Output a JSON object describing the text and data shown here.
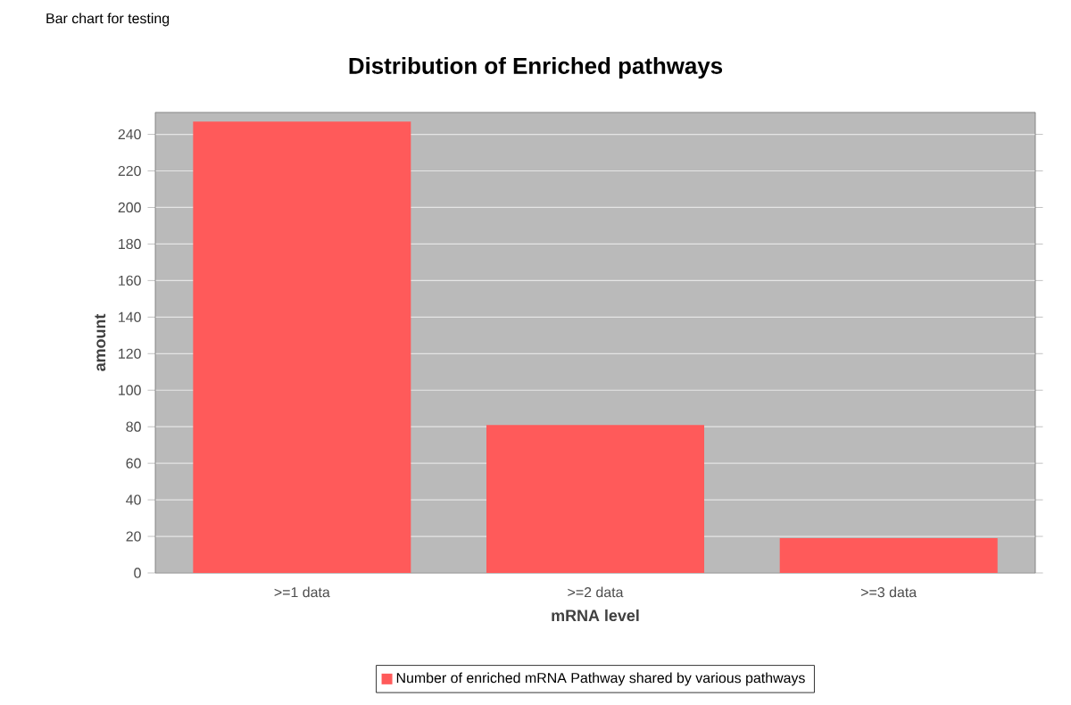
{
  "chart_data": {
    "type": "bar",
    "title": "Distribution of Enriched pathways",
    "xlabel": "mRNA level",
    "ylabel": "amount",
    "annotations": [
      "Bar chart for testing"
    ],
    "categories": [
      ">=1 data",
      ">=2 data",
      ">=3 data"
    ],
    "series": [
      {
        "name": "Number of enriched mRNA Pathway shared by various pathways",
        "color": "#ff5a5a",
        "values": [
          247,
          81,
          19
        ]
      }
    ],
    "ylim": [
      0,
      252
    ],
    "yticks": [
      0,
      20,
      40,
      60,
      80,
      100,
      120,
      140,
      160,
      180,
      200,
      220,
      240
    ],
    "grid": "y",
    "legend": "bottom"
  }
}
